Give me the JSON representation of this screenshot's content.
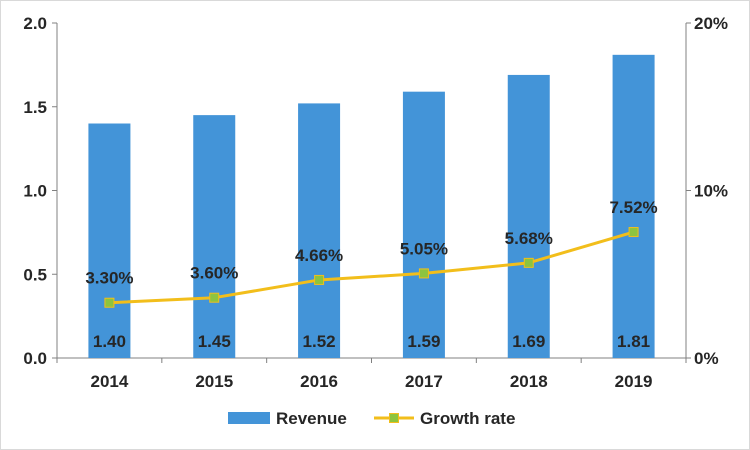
{
  "chart_data": {
    "type": "bar",
    "categories": [
      "2014",
      "2015",
      "2016",
      "2017",
      "2018",
      "2019"
    ],
    "series": [
      {
        "name": "Revenue",
        "type": "bar",
        "axis": "left",
        "color": "#4394D8",
        "values": [
          1.4,
          1.45,
          1.52,
          1.59,
          1.69,
          1.81
        ],
        "labels": [
          "1.40",
          "1.45",
          "1.52",
          "1.59",
          "1.69",
          "1.81"
        ]
      },
      {
        "name": "Growth rate",
        "type": "line",
        "axis": "right",
        "color": "#F2BE1B",
        "marker_color": "#8DC43F",
        "values": [
          3.3,
          3.6,
          4.66,
          5.05,
          5.68,
          7.52
        ],
        "labels": [
          "3.30%",
          "3.60%",
          "4.66%",
          "5.05%",
          "5.68%",
          "7.52%"
        ]
      }
    ],
    "y_left": {
      "ylim": [
        0,
        2.0
      ],
      "ticks": [
        "0.0",
        "0.5",
        "1.0",
        "1.5",
        "2.0"
      ],
      "tick_values": [
        0,
        0.5,
        1.0,
        1.5,
        2.0
      ]
    },
    "y_right": {
      "ylim": [
        0,
        20
      ],
      "ticks": [
        "0%",
        "10%",
        "20%"
      ],
      "tick_values": [
        0,
        10,
        20
      ]
    },
    "grid": false,
    "legend": "bottom-center",
    "title": "",
    "xlabel": "",
    "ylabel": ""
  }
}
